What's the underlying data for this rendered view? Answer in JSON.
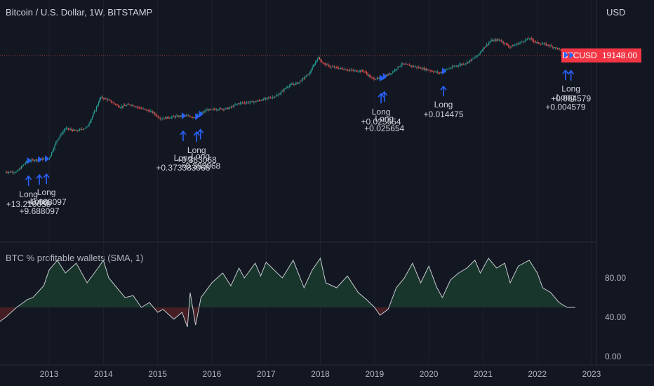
{
  "header": {
    "title": "Bitcoin / U.S. Dollar, 1W, BITSTAMP",
    "currency": "USD",
    "indicator_title": "BTC % profitable wallets (SMA, 1)"
  },
  "price_tag": {
    "symbol": "BTCUSD",
    "value": "19148.00",
    "color": "#f23645"
  },
  "colors": {
    "background": "#131722",
    "grid": "#1e222d",
    "candle_up": "#26a69a",
    "candle_down": "#ef5350",
    "signal": "#2962ff",
    "indicator_line": "#c7c9d1",
    "fill_above": "#1b3a2e",
    "fill_below": "#4a1f24"
  },
  "chart_data": [
    {
      "type": "line",
      "title": "Bitcoin / U.S. Dollar, 1W, BITSTAMP",
      "x": [
        2012.2,
        2012.4,
        2012.6,
        2012.8,
        2013.0,
        2013.15,
        2013.3,
        2013.5,
        2013.7,
        2013.85,
        2013.95,
        2014.1,
        2014.3,
        2014.5,
        2014.7,
        2014.9,
        2015.05,
        2015.3,
        2015.5,
        2015.7,
        2015.9,
        2016.1,
        2016.3,
        2016.5,
        2016.8,
        2017.0,
        2017.2,
        2017.4,
        2017.6,
        2017.8,
        2017.96,
        2018.05,
        2018.2,
        2018.4,
        2018.6,
        2018.8,
        2018.95,
        2019.1,
        2019.3,
        2019.5,
        2019.7,
        2019.9,
        2020.2,
        2020.3,
        2020.5,
        2020.7,
        2020.9,
        2021.0,
        2021.15,
        2021.3,
        2021.5,
        2021.65,
        2021.85,
        2022.0,
        2022.2,
        2022.4,
        2022.5,
        2022.7
      ],
      "y": [
        5,
        5,
        11,
        12,
        13,
        50,
        110,
        90,
        120,
        400,
        1000,
        800,
        500,
        600,
        450,
        350,
        220,
        250,
        270,
        240,
        400,
        430,
        450,
        650,
        730,
        900,
        1100,
        2200,
        2800,
        5500,
        17000,
        11000,
        8500,
        7500,
        6500,
        6400,
        3800,
        3700,
        5500,
        10500,
        9000,
        7500,
        5500,
        6800,
        9200,
        11500,
        19000,
        32000,
        55000,
        58000,
        35000,
        45000,
        65000,
        47000,
        40000,
        30000,
        20000,
        19148
      ],
      "y_scale": "log",
      "y_last": "19148.00",
      "x_tick_labels": [
        "2013",
        "2014",
        "2015",
        "2016",
        "2017",
        "2018",
        "2019",
        "2020",
        "2021",
        "2022",
        "2023"
      ]
    },
    {
      "type": "area",
      "title": "BTC % profitable wallets (SMA, 1)",
      "x": [
        2011.9,
        2012.0,
        2012.2,
        2012.4,
        2012.6,
        2012.7,
        2012.9,
        2013.0,
        2013.15,
        2013.3,
        2013.5,
        2013.7,
        2013.9,
        2014.0,
        2014.1,
        2014.25,
        2014.4,
        2014.55,
        2014.7,
        2014.85,
        2015.0,
        2015.1,
        2015.3,
        2015.45,
        2015.55,
        2015.6,
        2015.7,
        2015.8,
        2016.0,
        2016.2,
        2016.35,
        2016.5,
        2016.6,
        2016.8,
        2016.9,
        2017.0,
        2017.15,
        2017.3,
        2017.5,
        2017.7,
        2017.85,
        2018.0,
        2018.1,
        2018.3,
        2018.5,
        2018.7,
        2018.85,
        2019.0,
        2019.1,
        2019.25,
        2019.4,
        2019.55,
        2019.7,
        2019.85,
        2020.0,
        2020.15,
        2020.25,
        2020.4,
        2020.55,
        2020.7,
        2020.85,
        2020.95,
        2021.1,
        2021.25,
        2021.4,
        2021.5,
        2021.65,
        2021.85,
        2022.0,
        2022.1,
        2022.25,
        2022.4,
        2022.55,
        2022.7
      ],
      "y": [
        28,
        32,
        40,
        50,
        58,
        60,
        72,
        88,
        98,
        85,
        95,
        75,
        90,
        98,
        80,
        70,
        60,
        62,
        50,
        55,
        45,
        48,
        38,
        45,
        30,
        65,
        32,
        60,
        75,
        85,
        72,
        90,
        80,
        95,
        82,
        96,
        88,
        80,
        98,
        70,
        88,
        100,
        75,
        70,
        82,
        65,
        58,
        50,
        42,
        48,
        70,
        80,
        95,
        75,
        92,
        70,
        60,
        78,
        85,
        90,
        98,
        85,
        100,
        90,
        95,
        75,
        92,
        98,
        85,
        70,
        65,
        55,
        50,
        50
      ],
      "threshold": 50,
      "ylim": [
        0,
        110
      ],
      "y_tick_labels": [
        "80.00",
        "40.00",
        "0.00"
      ]
    }
  ],
  "signals": [
    {
      "x": 2012.62,
      "label": "Long",
      "value": "+13.210059"
    },
    {
      "x": 2012.82,
      "label": "Long",
      "value": "+9.688097"
    },
    {
      "x": 2012.95,
      "label": "Long",
      "value": "+8.688097"
    },
    {
      "x": 2015.47,
      "label": "Long",
      "value": "+0.373383068"
    },
    {
      "x": 2015.72,
      "label": "Long",
      "value": "+0.383068"
    },
    {
      "x": 2015.79,
      "label": "Long",
      "value": "+0.383068"
    },
    {
      "x": 2019.12,
      "label": "Long",
      "value": "+0.025654"
    },
    {
      "x": 2019.18,
      "label": "Long",
      "value": "+0.025654"
    },
    {
      "x": 2020.27,
      "label": "Long",
      "value": "+0.014475"
    },
    {
      "x": 2022.52,
      "label": "Long",
      "value": "+0.004579"
    },
    {
      "x": 2022.62,
      "label": "Long",
      "value": "+0.004579"
    }
  ]
}
